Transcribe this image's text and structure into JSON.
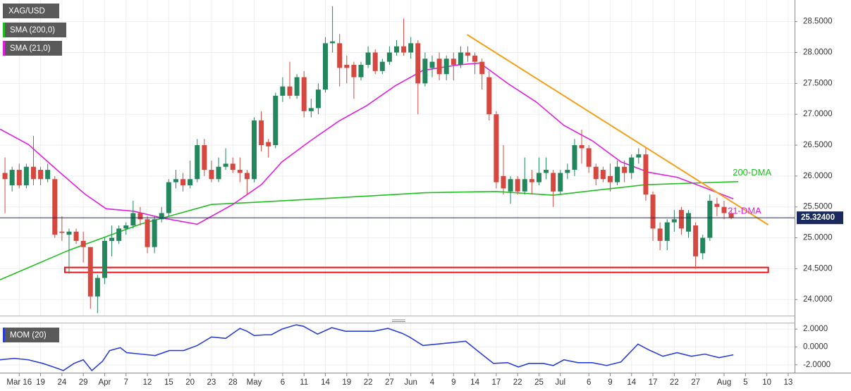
{
  "chart_data": [
    {
      "type": "candlestick",
      "title": "XAG/USD",
      "up_color": "#22875c",
      "down_color": "#d5473f",
      "x": [
        -2,
        -1,
        0,
        1,
        2,
        3,
        4,
        5,
        6,
        7,
        8,
        9,
        10,
        11,
        12,
        13,
        14,
        15,
        16,
        17,
        18,
        19,
        20,
        21,
        22,
        23,
        24,
        25,
        26,
        27,
        28,
        29,
        30,
        31,
        32,
        33,
        34,
        35,
        36,
        37,
        38,
        39,
        40,
        41,
        42,
        43,
        44,
        45,
        46,
        47,
        48,
        49,
        50,
        51,
        52,
        53,
        54,
        55,
        56,
        57,
        58,
        59,
        60,
        61,
        62,
        63,
        64,
        65,
        66,
        67,
        68,
        69,
        70,
        71,
        72,
        73,
        74,
        75,
        76,
        77,
        78,
        79,
        80,
        81,
        82,
        83,
        84,
        85,
        86,
        87,
        88,
        89,
        90,
        91,
        92,
        93,
        94,
        95,
        96,
        97,
        98,
        99,
        100
      ],
      "open": [
        26.05,
        25.85,
        26.1,
        25.85,
        26.15,
        26.1,
        25.95,
        25.95,
        25.1,
        25.05,
        25.1,
        24.95,
        24.85,
        24.05,
        24.35,
        24.95,
        24.95,
        25.15,
        25.2,
        25.4,
        25.3,
        24.85,
        25.3,
        25.4,
        25.9,
        25.95,
        25.85,
        25.95,
        26.5,
        26.1,
        25.95,
        26.15,
        26.2,
        26.1,
        26.05,
        25.95,
        26.9,
        26.55,
        26.5,
        27.3,
        27.45,
        27.3,
        27.6,
        27.05,
        27.1,
        27.4,
        28.15,
        28.15,
        27.8,
        27.8,
        27.6,
        27.8,
        28.0,
        27.7,
        27.85,
        28.0,
        28.1,
        28.0,
        28.15,
        27.5,
        27.75,
        27.9,
        27.65,
        27.9,
        27.8,
        28.0,
        27.95,
        27.85,
        27.6,
        27.0,
        26.0,
        25.75,
        25.95,
        25.75,
        25.95,
        25.9,
        26.05,
        26.05,
        25.75,
        26.05,
        26.1,
        26.5,
        26.45,
        26.15,
        26.1,
        26.0,
        25.9,
        26.15,
        26.05,
        26.3,
        26.35,
        25.7,
        25.15,
        24.95,
        25.25,
        25.45,
        25.1,
        25.2,
        24.75,
        25.0,
        25.55,
        25.5,
        25.4
      ],
      "high": [
        26.3,
        26.15,
        26.2,
        26.2,
        26.65,
        26.15,
        26.2,
        26.0,
        25.35,
        25.15,
        25.15,
        25.1,
        24.85,
        24.4,
        25.0,
        25.2,
        25.2,
        25.25,
        25.6,
        25.5,
        25.35,
        25.35,
        25.5,
        25.95,
        26.1,
        26.05,
        26.25,
        26.6,
        26.6,
        26.25,
        26.3,
        26.45,
        26.3,
        26.3,
        26.1,
        26.95,
        27.05,
        26.6,
        27.35,
        27.6,
        27.85,
        27.65,
        27.7,
        27.25,
        27.5,
        28.25,
        28.75,
        28.3,
        27.95,
        27.85,
        27.85,
        28.1,
        28.05,
        27.9,
        28.1,
        28.2,
        28.55,
        28.25,
        28.2,
        28.0,
        27.95,
        28.0,
        27.95,
        28.0,
        28.1,
        28.1,
        28.0,
        27.9,
        27.7,
        27.05,
        26.5,
        26.0,
        26.0,
        26.3,
        26.1,
        26.3,
        26.3,
        26.1,
        26.1,
        26.2,
        26.6,
        26.75,
        26.5,
        26.2,
        26.15,
        26.2,
        26.25,
        26.25,
        26.35,
        26.45,
        26.45,
        25.75,
        25.25,
        25.3,
        25.45,
        25.5,
        25.45,
        25.25,
        25.05,
        25.7,
        25.65,
        25.6,
        25.45
      ],
      "low": [
        25.4,
        25.75,
        25.8,
        25.8,
        25.85,
        25.85,
        25.9,
        25.0,
        24.95,
        24.42,
        24.9,
        24.6,
        23.85,
        23.78,
        24.25,
        24.7,
        24.9,
        25.05,
        25.15,
        25.2,
        24.75,
        24.75,
        25.25,
        25.35,
        25.8,
        25.75,
        25.8,
        25.9,
        26.0,
        25.9,
        25.9,
        26.1,
        26.05,
        25.9,
        25.7,
        25.9,
        26.4,
        26.3,
        26.45,
        27.2,
        27.25,
        27.25,
        26.95,
        26.95,
        27.0,
        27.35,
        28.0,
        27.45,
        27.5,
        27.25,
        27.55,
        27.75,
        27.65,
        27.65,
        27.8,
        27.95,
        27.95,
        27.9,
        27.0,
        27.45,
        27.6,
        27.55,
        27.55,
        27.55,
        27.75,
        27.85,
        27.65,
        27.4,
        26.9,
        25.8,
        25.7,
        25.55,
        25.7,
        25.7,
        25.7,
        25.85,
        25.95,
        25.5,
        25.7,
        25.95,
        26.0,
        26.2,
        26.05,
        25.85,
        25.9,
        25.75,
        25.85,
        25.9,
        25.95,
        26.2,
        25.6,
        24.95,
        24.8,
        24.8,
        25.1,
        25.05,
        25.0,
        24.5,
        24.65,
        24.95,
        25.35,
        25.3,
        25.3
      ],
      "close": [
        25.95,
        26.1,
        25.85,
        26.15,
        25.95,
        25.95,
        26.1,
        25.05,
        25.08,
        25.1,
        24.95,
        24.85,
        24.05,
        24.35,
        24.95,
        25.0,
        25.15,
        25.2,
        25.4,
        25.3,
        24.85,
        25.3,
        25.4,
        25.9,
        25.95,
        25.85,
        25.95,
        26.5,
        26.1,
        25.95,
        26.15,
        26.2,
        26.1,
        26.05,
        25.95,
        26.9,
        26.5,
        26.48,
        27.3,
        27.45,
        27.3,
        27.6,
        27.05,
        27.1,
        27.4,
        28.15,
        28.18,
        27.75,
        27.75,
        27.6,
        27.8,
        28.0,
        27.7,
        27.85,
        28.0,
        28.1,
        28.0,
        28.15,
        27.5,
        27.9,
        27.85,
        27.65,
        27.9,
        27.8,
        28.0,
        27.95,
        27.85,
        27.65,
        27.0,
        25.9,
        25.8,
        25.95,
        25.75,
        25.95,
        25.9,
        26.05,
        26.1,
        25.75,
        26.05,
        26.1,
        26.5,
        26.45,
        26.15,
        25.95,
        25.95,
        25.9,
        26.15,
        26.05,
        26.3,
        26.35,
        25.7,
        25.15,
        24.95,
        25.25,
        25.3,
        25.15,
        25.4,
        24.7,
        25.0,
        25.6,
        25.5,
        25.4,
        25.324
      ],
      "series": [
        {
          "name": "SMA (200,0)",
          "color": "#1fbf1f",
          "annotation": "200-DMA",
          "x": [
            -2.7,
            7,
            17,
            27,
            34,
            45,
            57,
            67,
            75,
            81,
            88,
            101
          ],
          "values": [
            24.32,
            24.8,
            25.22,
            25.54,
            25.58,
            25.65,
            25.73,
            25.75,
            25.69,
            25.77,
            25.86,
            25.91
          ]
        },
        {
          "name": "SMA (21,0)",
          "color": "#e21fe0",
          "annotation": "21-DMA",
          "x": [
            -2.7,
            1.3,
            5.2,
            9.2,
            12.2,
            16.1,
            20.1,
            25,
            30,
            34,
            36.9,
            40.9,
            44.9,
            48.8,
            52.8,
            56.7,
            61.7,
            64.7,
            68.6,
            72.6,
            76.5,
            80.5,
            84.5,
            88.4,
            92.4,
            96.3,
            100.3
          ],
          "values": [
            26.76,
            26.51,
            26.11,
            25.71,
            25.47,
            25.43,
            25.32,
            25.22,
            25.54,
            25.86,
            26.23,
            26.57,
            26.89,
            27.14,
            27.46,
            27.71,
            27.8,
            27.83,
            27.5,
            27.2,
            26.82,
            26.57,
            26.23,
            26.06,
            25.98,
            25.81,
            25.63
          ]
        }
      ],
      "trendline": {
        "color": "#f5a01a",
        "x": [
          62.9,
          105.2
        ],
        "values": [
          28.29,
          25.21
        ]
      },
      "support_zone": {
        "color": "#e8141b",
        "x": [
          6.4,
          105.2
        ],
        "low": 24.44,
        "high": 24.52
      },
      "last_price": {
        "value": 25.324,
        "label": "25.32400",
        "color": "#1b2a5e"
      },
      "xlim": [
        -2.7,
        108.9
      ],
      "xticks": [
        {
          "value": 0,
          "label": "Mar 16"
        },
        {
          "value": 3,
          "label": "19"
        },
        {
          "value": 6,
          "label": "24"
        },
        {
          "value": 9,
          "label": "29"
        },
        {
          "value": 12,
          "label": "Apr"
        },
        {
          "value": 15,
          "label": "7"
        },
        {
          "value": 18,
          "label": "12"
        },
        {
          "value": 21,
          "label": "15"
        },
        {
          "value": 24,
          "label": "20"
        },
        {
          "value": 27,
          "label": "23"
        },
        {
          "value": 30,
          "label": "28"
        },
        {
          "value": 33,
          "label": "May"
        },
        {
          "value": 37,
          "label": "6"
        },
        {
          "value": 40,
          "label": "11"
        },
        {
          "value": 43,
          "label": "14"
        },
        {
          "value": 46,
          "label": "19"
        },
        {
          "value": 49,
          "label": "22"
        },
        {
          "value": 52,
          "label": "27"
        },
        {
          "value": 55,
          "label": "Jun"
        },
        {
          "value": 58,
          "label": "4"
        },
        {
          "value": 61,
          "label": "9"
        },
        {
          "value": 64,
          "label": "14"
        },
        {
          "value": 67,
          "label": "17"
        },
        {
          "value": 70,
          "label": "22"
        },
        {
          "value": 73,
          "label": "25"
        },
        {
          "value": 76,
          "label": "Jul"
        },
        {
          "value": 80,
          "label": "6"
        },
        {
          "value": 83,
          "label": "9"
        },
        {
          "value": 86,
          "label": "14"
        },
        {
          "value": 89,
          "label": "17"
        },
        {
          "value": 92,
          "label": "22"
        },
        {
          "value": 95,
          "label": "27"
        },
        {
          "value": 99,
          "label": "Aug"
        },
        {
          "value": 102,
          "label": "5"
        },
        {
          "value": 105,
          "label": "10"
        },
        {
          "value": 108,
          "label": "13"
        }
      ],
      "ylim": [
        23.74,
        28.85
      ],
      "yticks": [
        {
          "value": 24,
          "label": "24.0000"
        },
        {
          "value": 24.5,
          "label": "24.5000"
        },
        {
          "value": 25,
          "label": "25.0000"
        },
        {
          "value": 25.5,
          "label": "25.5000"
        },
        {
          "value": 26,
          "label": "26.0000"
        },
        {
          "value": 26.5,
          "label": "26.5000"
        },
        {
          "value": 27,
          "label": "27.0000"
        },
        {
          "value": 27.5,
          "label": "27.5000"
        },
        {
          "value": 28,
          "label": "28.0000"
        },
        {
          "value": 28.5,
          "label": "28.5000"
        }
      ],
      "grid": true
    },
    {
      "type": "line",
      "series": [
        {
          "name": "MOM (20)",
          "color": "#2b3fd8",
          "x": [
            -2.7,
            -0.7,
            1.3,
            3.3,
            4.8,
            6.2,
            7.7,
            9.0,
            10.2,
            11.7,
            12.7,
            14.2,
            15.1,
            17.1,
            19.1,
            21.1,
            23.1,
            25.0,
            27.0,
            29.0,
            31.0,
            32.0,
            33.0,
            34.5,
            35.4,
            36.9,
            38.9,
            39.9,
            41.9,
            43.9,
            45.8,
            47.8,
            49.8,
            51.8,
            53.8,
            54.8,
            56.7,
            58.7,
            60.7,
            62.7,
            64.7,
            66.6,
            68.6,
            70.1,
            71.6,
            73.6,
            75.0,
            76.5,
            78.5,
            80.5,
            82.5,
            84.5,
            86.9,
            88.4,
            90.4,
            92.4,
            94.4,
            96.3,
            98.3,
            100.3
          ],
          "values": [
            -1.44,
            -1.28,
            -1.44,
            -1.84,
            -2.24,
            -2.64,
            -1.84,
            -1.44,
            -2.64,
            -1.6,
            -0.4,
            -0.08,
            -0.64,
            -0.8,
            -0.96,
            -0.4,
            -0.4,
            0.16,
            1.12,
            0.96,
            2.08,
            1.76,
            1.28,
            1.36,
            1.36,
            2.0,
            2.48,
            2.32,
            1.44,
            2.16,
            1.76,
            1.76,
            1.76,
            2.08,
            1.52,
            1.12,
            0.16,
            0.32,
            0.48,
            0.64,
            -0.64,
            -1.84,
            -1.76,
            -2.24,
            -1.84,
            -1.84,
            -2.08,
            -1.44,
            -1.76,
            -1.76,
            -2.08,
            -1.68,
            0.32,
            -0.32,
            -1.04,
            -0.64,
            -1.04,
            -0.8,
            -1.2,
            -0.88
          ]
        }
      ],
      "ylim": [
        -2.88,
        2.72
      ],
      "yticks": [
        {
          "value": 2,
          "label": "2.0000"
        },
        {
          "value": 0,
          "label": "0.0000"
        },
        {
          "value": -2,
          "label": "-2.0000"
        }
      ],
      "grid": true
    }
  ]
}
